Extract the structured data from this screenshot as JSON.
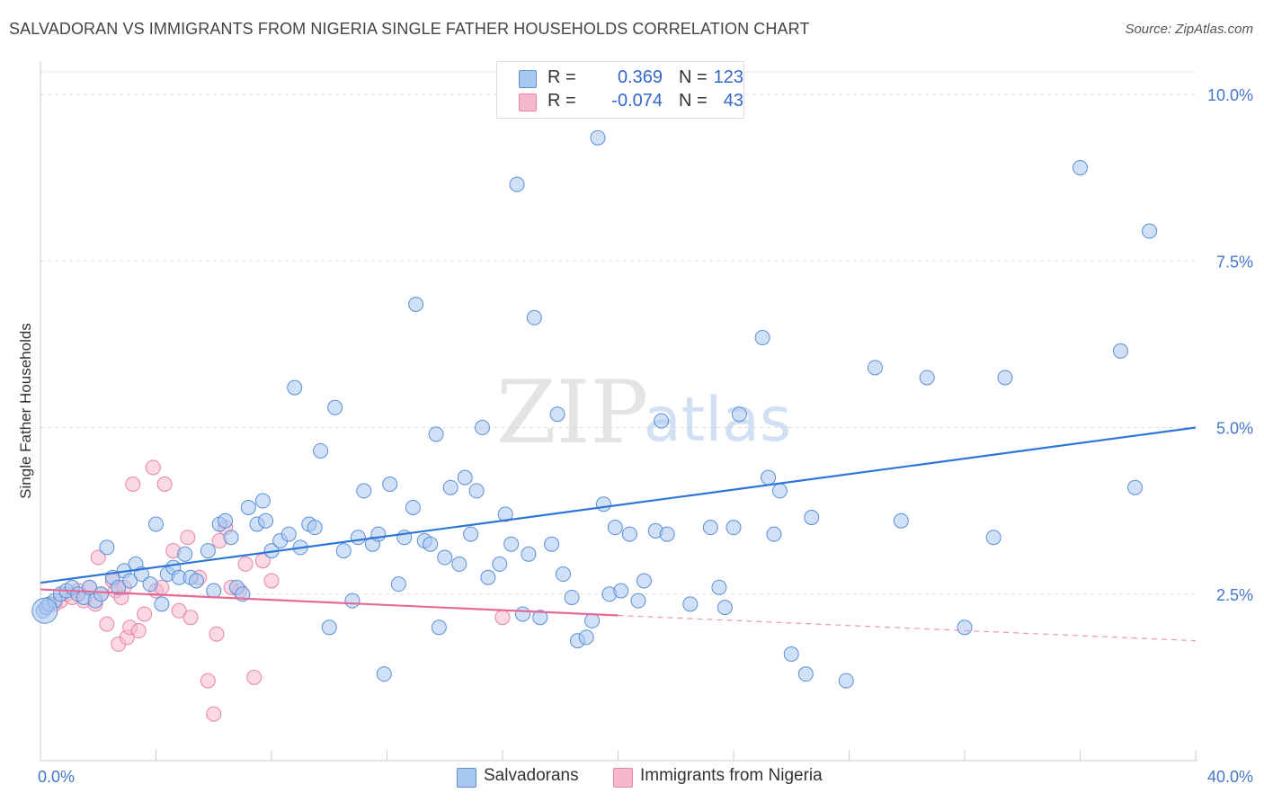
{
  "header": {
    "title": "SALVADORAN VS IMMIGRANTS FROM NIGERIA SINGLE FATHER HOUSEHOLDS CORRELATION CHART",
    "source": "Source: ZipAtlas.com"
  },
  "watermark": {
    "zip": "ZIP",
    "atlas": "atlas"
  },
  "legend": {
    "r_label": "R =",
    "n_label": "N =",
    "rows": [
      {
        "r": "0.369",
        "n": "123"
      },
      {
        "r": "-0.074",
        "n": "43"
      }
    ]
  },
  "colors": {
    "blue_fill": "#a9c8f0",
    "blue_stroke": "#5b8fd6",
    "blue_line": "#2f75d6",
    "pink_fill": "#f5b8cd",
    "pink_stroke": "#e884a8",
    "pink_line": "#e56a96",
    "grid": "#dddddd",
    "tick_text": "#4477cc"
  },
  "chart_data": {
    "type": "scatter",
    "title": "SALVADORAN VS IMMIGRANTS FROM NIGERIA SINGLE FATHER HOUSEHOLDS CORRELATION CHART",
    "xlabel": "",
    "ylabel": "Single Father Households",
    "xlim": [
      0,
      40
    ],
    "ylim": [
      0,
      10.5
    ],
    "x_tick_labels": [
      "0.0%",
      "40.0%"
    ],
    "y_ticks": [
      2.5,
      5.0,
      7.5,
      10.0
    ],
    "y_tick_labels": [
      "2.5%",
      "5.0%",
      "7.5%",
      "10.0%"
    ],
    "grid": true,
    "series": [
      {
        "name": "Salvadorans",
        "color": "#a9c8f0",
        "trend": {
          "x": [
            0,
            40
          ],
          "y": [
            2.67,
            5.0
          ],
          "style": "solid"
        },
        "points": [
          [
            0.1,
            2.25
          ],
          [
            0.2,
            2.3
          ],
          [
            0.3,
            2.35
          ],
          [
            0.5,
            2.4
          ],
          [
            0.7,
            2.5
          ],
          [
            0.9,
            2.55
          ],
          [
            1.1,
            2.6
          ],
          [
            1.3,
            2.5
          ],
          [
            1.5,
            2.45
          ],
          [
            1.7,
            2.6
          ],
          [
            1.9,
            2.4
          ],
          [
            2.1,
            2.5
          ],
          [
            2.3,
            3.2
          ],
          [
            2.5,
            2.75
          ],
          [
            2.7,
            2.6
          ],
          [
            2.9,
            2.85
          ],
          [
            3.1,
            2.7
          ],
          [
            3.3,
            2.95
          ],
          [
            3.5,
            2.8
          ],
          [
            3.8,
            2.65
          ],
          [
            4.0,
            3.55
          ],
          [
            4.2,
            2.35
          ],
          [
            4.4,
            2.8
          ],
          [
            4.6,
            2.9
          ],
          [
            4.8,
            2.75
          ],
          [
            5.0,
            3.1
          ],
          [
            5.2,
            2.75
          ],
          [
            5.4,
            2.7
          ],
          [
            5.8,
            3.15
          ],
          [
            6.0,
            2.55
          ],
          [
            6.2,
            3.55
          ],
          [
            6.4,
            3.6
          ],
          [
            6.6,
            3.35
          ],
          [
            6.8,
            2.6
          ],
          [
            7.0,
            2.5
          ],
          [
            7.2,
            3.8
          ],
          [
            7.5,
            3.55
          ],
          [
            7.7,
            3.9
          ],
          [
            7.8,
            3.6
          ],
          [
            8.0,
            3.15
          ],
          [
            8.3,
            3.3
          ],
          [
            8.6,
            3.4
          ],
          [
            8.8,
            5.6
          ],
          [
            9.0,
            3.2
          ],
          [
            9.3,
            3.55
          ],
          [
            9.5,
            3.5
          ],
          [
            9.7,
            4.65
          ],
          [
            10.0,
            2.0
          ],
          [
            10.2,
            5.3
          ],
          [
            10.5,
            3.15
          ],
          [
            10.8,
            2.4
          ],
          [
            11.0,
            3.35
          ],
          [
            11.2,
            4.05
          ],
          [
            11.5,
            3.25
          ],
          [
            11.7,
            3.4
          ],
          [
            11.9,
            1.3
          ],
          [
            12.1,
            4.15
          ],
          [
            12.4,
            2.65
          ],
          [
            12.6,
            3.35
          ],
          [
            12.9,
            3.8
          ],
          [
            13.0,
            6.85
          ],
          [
            13.3,
            3.3
          ],
          [
            13.5,
            3.25
          ],
          [
            13.7,
            4.9
          ],
          [
            13.8,
            2.0
          ],
          [
            14.0,
            3.05
          ],
          [
            14.2,
            4.1
          ],
          [
            14.5,
            2.95
          ],
          [
            14.7,
            4.25
          ],
          [
            14.9,
            3.4
          ],
          [
            15.1,
            4.05
          ],
          [
            15.3,
            5.0
          ],
          [
            15.5,
            2.75
          ],
          [
            15.9,
            2.95
          ],
          [
            16.1,
            3.7
          ],
          [
            16.3,
            3.25
          ],
          [
            16.5,
            8.65
          ],
          [
            16.7,
            2.2
          ],
          [
            16.9,
            3.1
          ],
          [
            17.1,
            6.65
          ],
          [
            17.3,
            2.15
          ],
          [
            17.7,
            3.25
          ],
          [
            17.9,
            5.2
          ],
          [
            18.1,
            2.8
          ],
          [
            18.4,
            2.45
          ],
          [
            18.6,
            1.8
          ],
          [
            18.9,
            1.85
          ],
          [
            19.1,
            2.1
          ],
          [
            19.3,
            9.35
          ],
          [
            19.5,
            3.85
          ],
          [
            19.7,
            2.5
          ],
          [
            19.9,
            3.5
          ],
          [
            20.1,
            2.55
          ],
          [
            20.4,
            3.4
          ],
          [
            20.7,
            2.4
          ],
          [
            20.9,
            2.7
          ],
          [
            21.3,
            3.45
          ],
          [
            21.5,
            5.1
          ],
          [
            21.7,
            3.4
          ],
          [
            22.5,
            2.35
          ],
          [
            23.2,
            3.5
          ],
          [
            23.5,
            2.6
          ],
          [
            23.7,
            2.3
          ],
          [
            24.0,
            3.5
          ],
          [
            24.2,
            5.2
          ],
          [
            25.0,
            6.35
          ],
          [
            25.2,
            4.25
          ],
          [
            25.4,
            3.4
          ],
          [
            25.6,
            4.05
          ],
          [
            26.0,
            1.6
          ],
          [
            26.5,
            1.3
          ],
          [
            26.7,
            3.65
          ],
          [
            27.9,
            1.2
          ],
          [
            28.9,
            5.9
          ],
          [
            29.8,
            3.6
          ],
          [
            30.7,
            5.75
          ],
          [
            32.0,
            2.0
          ],
          [
            33.0,
            3.35
          ],
          [
            33.4,
            5.75
          ],
          [
            36.0,
            8.9
          ],
          [
            37.4,
            6.15
          ],
          [
            37.9,
            4.1
          ],
          [
            38.4,
            7.95
          ]
        ]
      },
      {
        "name": "Immigrants from Nigeria",
        "color": "#f5b8cd",
        "trend": {
          "x": [
            0,
            20
          ],
          "y": [
            2.57,
            2.18
          ],
          "style": "solid",
          "dashed_extension_to": [
            40,
            1.8
          ]
        },
        "points": [
          [
            0.2,
            2.3
          ],
          [
            0.5,
            2.35
          ],
          [
            0.7,
            2.4
          ],
          [
            0.9,
            2.5
          ],
          [
            1.1,
            2.45
          ],
          [
            1.3,
            2.55
          ],
          [
            1.5,
            2.4
          ],
          [
            1.7,
            2.6
          ],
          [
            1.9,
            2.35
          ],
          [
            2.0,
            3.05
          ],
          [
            2.1,
            2.5
          ],
          [
            2.3,
            2.05
          ],
          [
            2.5,
            2.7
          ],
          [
            2.6,
            2.55
          ],
          [
            2.7,
            1.75
          ],
          [
            2.8,
            2.45
          ],
          [
            2.9,
            2.6
          ],
          [
            3.0,
            1.85
          ],
          [
            3.1,
            2.0
          ],
          [
            3.2,
            4.15
          ],
          [
            3.4,
            1.95
          ],
          [
            3.6,
            2.2
          ],
          [
            3.9,
            4.4
          ],
          [
            4.0,
            2.55
          ],
          [
            4.2,
            2.6
          ],
          [
            4.3,
            4.15
          ],
          [
            4.6,
            3.15
          ],
          [
            4.8,
            2.25
          ],
          [
            5.1,
            3.35
          ],
          [
            5.2,
            2.15
          ],
          [
            5.5,
            2.75
          ],
          [
            5.8,
            1.2
          ],
          [
            6.0,
            0.7
          ],
          [
            6.1,
            1.9
          ],
          [
            6.2,
            3.3
          ],
          [
            6.4,
            3.5
          ],
          [
            6.6,
            2.6
          ],
          [
            6.9,
            2.55
          ],
          [
            7.1,
            2.95
          ],
          [
            7.4,
            1.25
          ],
          [
            7.7,
            3.0
          ],
          [
            8.0,
            2.7
          ],
          [
            16.0,
            2.15
          ]
        ]
      }
    ]
  },
  "bottom_legend": [
    {
      "label": "Salvadorans"
    },
    {
      "label": "Immigrants from Nigeria"
    }
  ]
}
